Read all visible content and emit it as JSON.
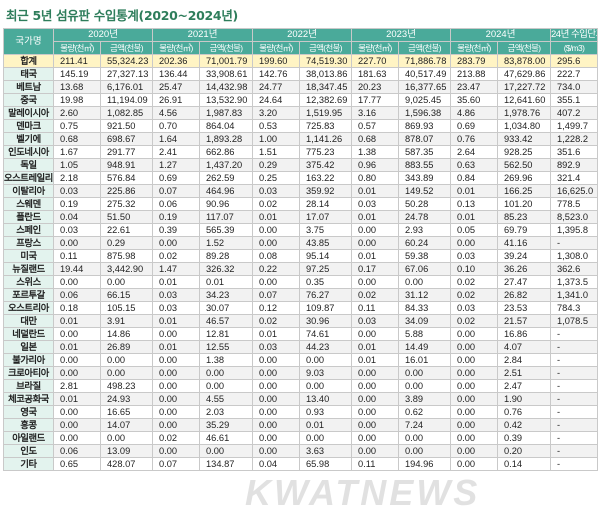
{
  "title": "최근 5년 섬유판 수입통계(2020~2024년)",
  "header": {
    "country_label": "국가명",
    "years": [
      "2020년",
      "2021년",
      "2022년",
      "2023년",
      "2024년"
    ],
    "qty_label": "물량(천㎥)",
    "amount_label": "금액(천불)",
    "unit_price_label": "24년 수입단가",
    "unit_price_unit": "($/m3)"
  },
  "rows": [
    [
      "합계",
      "211.41",
      "55,324.23",
      "202.36",
      "71,001.79",
      "199.60",
      "74,519.30",
      "227.70",
      "71,886.78",
      "283.79",
      "83,878.00",
      "295.6"
    ],
    [
      "태국",
      "145.19",
      "27,327.13",
      "136.44",
      "33,908.61",
      "142.76",
      "38,013.86",
      "181.63",
      "40,517.49",
      "213.88",
      "47,629.86",
      "222.7"
    ],
    [
      "베트남",
      "13.68",
      "6,176.01",
      "25.47",
      "14,432.98",
      "24.77",
      "18,347.45",
      "20.23",
      "16,377.65",
      "23.47",
      "17,227.72",
      "734.0"
    ],
    [
      "중국",
      "19.98",
      "11,194.09",
      "26.91",
      "13,532.90",
      "24.64",
      "12,382.69",
      "17.77",
      "9,025.45",
      "35.60",
      "12,641.60",
      "355.1"
    ],
    [
      "말레이시아",
      "2.60",
      "1,082.85",
      "4.56",
      "1,987.83",
      "3.20",
      "1,519.95",
      "3.16",
      "1,596.38",
      "4.86",
      "1,978.76",
      "407.2"
    ],
    [
      "덴마크",
      "0.75",
      "921.50",
      "0.70",
      "864.04",
      "0.53",
      "725.83",
      "0.57",
      "869.93",
      "0.69",
      "1,034.80",
      "1,499.7"
    ],
    [
      "벨기에",
      "0.68",
      "698.67",
      "1.64",
      "1,893.28",
      "1.00",
      "1,141.26",
      "0.68",
      "878.07",
      "0.76",
      "933.42",
      "1,228.2"
    ],
    [
      "인도네시아",
      "1.67",
      "291.77",
      "2.41",
      "662.86",
      "1.51",
      "775.23",
      "1.38",
      "587.35",
      "2.64",
      "928.25",
      "351.6"
    ],
    [
      "독일",
      "1.05",
      "948.91",
      "1.27",
      "1,437.20",
      "0.29",
      "375.42",
      "0.96",
      "883.55",
      "0.63",
      "562.50",
      "892.9"
    ],
    [
      "오스트레일리아",
      "2.18",
      "576.84",
      "0.69",
      "262.59",
      "0.25",
      "163.22",
      "0.80",
      "343.89",
      "0.84",
      "269.96",
      "321.4"
    ],
    [
      "이탈리아",
      "0.03",
      "225.86",
      "0.07",
      "464.96",
      "0.03",
      "359.92",
      "0.01",
      "149.52",
      "0.01",
      "166.25",
      "16,625.0"
    ],
    [
      "스웨덴",
      "0.19",
      "275.32",
      "0.06",
      "90.96",
      "0.02",
      "28.14",
      "0.03",
      "50.28",
      "0.13",
      "101.20",
      "778.5"
    ],
    [
      "폴란드",
      "0.04",
      "51.50",
      "0.19",
      "117.07",
      "0.01",
      "17.07",
      "0.01",
      "24.78",
      "0.01",
      "85.23",
      "8,523.0"
    ],
    [
      "스페인",
      "0.03",
      "22.61",
      "0.39",
      "565.39",
      "0.00",
      "3.75",
      "0.00",
      "2.93",
      "0.05",
      "69.79",
      "1,395.8"
    ],
    [
      "프랑스",
      "0.00",
      "0.29",
      "0.00",
      "1.52",
      "0.00",
      "43.85",
      "0.00",
      "60.24",
      "0.00",
      "41.16",
      "-"
    ],
    [
      "미국",
      "0.11",
      "875.98",
      "0.02",
      "89.28",
      "0.08",
      "95.14",
      "0.01",
      "59.38",
      "0.03",
      "39.24",
      "1,308.0"
    ],
    [
      "뉴질랜드",
      "19.44",
      "3,442.90",
      "1.47",
      "326.32",
      "0.22",
      "97.25",
      "0.17",
      "67.06",
      "0.10",
      "36.26",
      "362.6"
    ],
    [
      "스위스",
      "0.00",
      "0.00",
      "0.01",
      "0.01",
      "0.00",
      "0.35",
      "0.00",
      "0.00",
      "0.02",
      "27.47",
      "1,373.5"
    ],
    [
      "포르투갈",
      "0.06",
      "66.15",
      "0.03",
      "34.23",
      "0.07",
      "76.27",
      "0.02",
      "31.12",
      "0.02",
      "26.82",
      "1,341.0"
    ],
    [
      "오스트리아",
      "0.18",
      "105.15",
      "0.03",
      "30.07",
      "0.12",
      "109.87",
      "0.11",
      "84.33",
      "0.03",
      "23.53",
      "784.3"
    ],
    [
      "대만",
      "0.01",
      "3.91",
      "0.01",
      "46.57",
      "0.02",
      "30.96",
      "0.03",
      "34.09",
      "0.02",
      "21.57",
      "1,078.5"
    ],
    [
      "네덜란드",
      "0.00",
      "14.86",
      "0.00",
      "12.81",
      "0.01",
      "74.61",
      "0.00",
      "5.88",
      "0.00",
      "16.86",
      "-"
    ],
    [
      "일본",
      "0.01",
      "26.89",
      "0.01",
      "12.55",
      "0.03",
      "44.23",
      "0.01",
      "14.49",
      "0.00",
      "4.07",
      "-"
    ],
    [
      "불가리아",
      "0.00",
      "0.00",
      "0.00",
      "1.38",
      "0.00",
      "0.00",
      "0.01",
      "16.01",
      "0.00",
      "2.84",
      "-"
    ],
    [
      "크로아티아",
      "0.00",
      "0.00",
      "0.00",
      "0.00",
      "0.00",
      "9.03",
      "0.00",
      "0.00",
      "0.00",
      "2.51",
      "-"
    ],
    [
      "브라질",
      "2.81",
      "498.23",
      "0.00",
      "0.00",
      "0.00",
      "0.00",
      "0.00",
      "0.00",
      "0.00",
      "2.47",
      "-"
    ],
    [
      "체코공화국",
      "0.01",
      "24.93",
      "0.00",
      "4.55",
      "0.00",
      "13.40",
      "0.00",
      "3.89",
      "0.00",
      "1.90",
      "-"
    ],
    [
      "영국",
      "0.00",
      "16.65",
      "0.00",
      "2.03",
      "0.00",
      "0.93",
      "0.00",
      "0.62",
      "0.00",
      "0.76",
      "-"
    ],
    [
      "홍콩",
      "0.00",
      "14.07",
      "0.00",
      "35.29",
      "0.00",
      "0.01",
      "0.00",
      "7.24",
      "0.00",
      "0.42",
      "-"
    ],
    [
      "아일랜드",
      "0.00",
      "0.00",
      "0.02",
      "46.61",
      "0.00",
      "0.00",
      "0.00",
      "0.00",
      "0.00",
      "0.39",
      "-"
    ],
    [
      "인도",
      "0.06",
      "13.09",
      "0.00",
      "0.00",
      "0.00",
      "3.63",
      "0.00",
      "0.00",
      "0.00",
      "0.20",
      "-"
    ],
    [
      "기타",
      "0.65",
      "428.07",
      "0.07",
      "134.87",
      "0.04",
      "65.98",
      "0.11",
      "194.96",
      "0.00",
      "0.14",
      "-"
    ]
  ],
  "watermark": "KWATNEWS"
}
